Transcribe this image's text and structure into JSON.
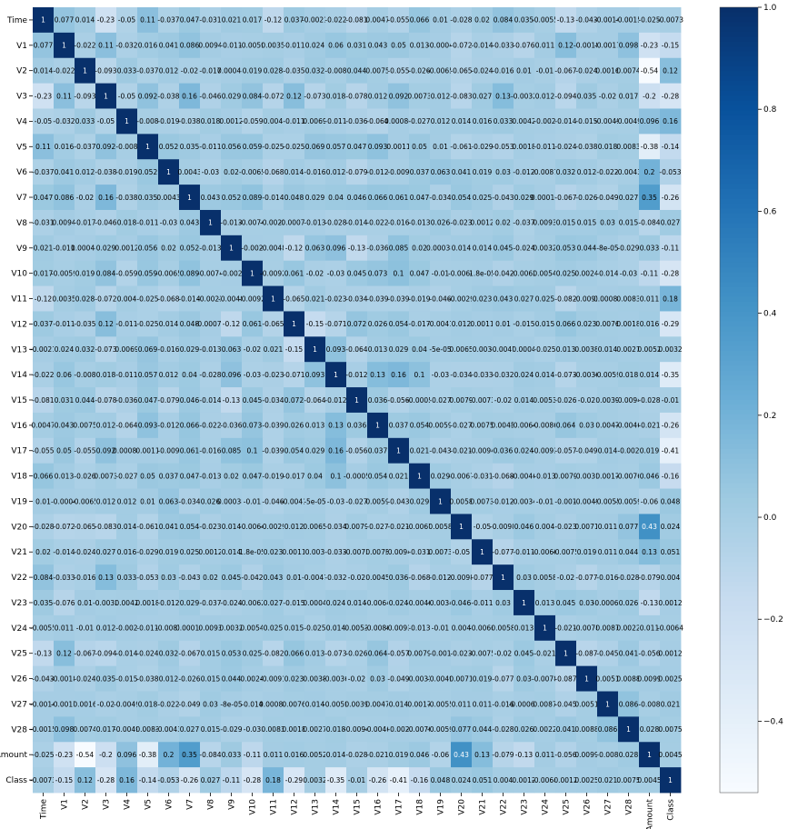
{
  "chart_data": {
    "type": "heatmap",
    "colormap": "Blues",
    "vmin": -0.54,
    "vmax": 1.0,
    "labels": [
      "Time",
      "V1",
      "V2",
      "V3",
      "V4",
      "V5",
      "V6",
      "V7",
      "V8",
      "V9",
      "V10",
      "V11",
      "V12",
      "V13",
      "V14",
      "V15",
      "V16",
      "V17",
      "V18",
      "V19",
      "V20",
      "V21",
      "V22",
      "V23",
      "V24",
      "V25",
      "V26",
      "V27",
      "V28",
      "Amount",
      "Class"
    ],
    "colorbar_ticks": [
      1.0,
      0.8,
      0.6,
      0.4,
      0.2,
      0.0,
      -0.2,
      -0.4
    ],
    "colorbar_tick_labels": [
      "1.0",
      "0.8",
      "0.6",
      "0.4",
      "0.2",
      "0.0",
      "−0.2",
      "−0.4"
    ],
    "matrix": [
      [
        "1",
        "0.077",
        "0.014",
        "-0.23",
        "-0.05",
        "0.11",
        "-0.037",
        "0.047",
        "-0.031",
        "0.021",
        "0.017",
        "-0.12",
        "0.037",
        "-0.0021",
        "-0.022",
        "-0.081",
        "0.0047",
        "-0.055",
        "0.066",
        "0.01",
        "-0.028",
        "0.02",
        "0.084",
        "0.035",
        "-0.0055",
        "-0.13",
        "-0.043",
        "-0.0014",
        "-0.0015",
        "-0.025",
        "-0.0073"
      ],
      [
        "0.077",
        "1",
        "-0.022",
        "0.11",
        "-0.032",
        "0.016",
        "0.041",
        "0.086",
        "0.0094",
        "-0.011",
        "-0.0059",
        "0.0035",
        "-0.011",
        "0.024",
        "0.06",
        "0.031",
        "0.043",
        "0.05",
        "0.013",
        "-0.0004",
        "-0.072",
        "-0.014",
        "-0.033",
        "-0.076",
        "0.011",
        "0.12",
        "-0.0018",
        "-0.0017",
        "0.098",
        "-0.23",
        "-0.15"
      ],
      [
        "0.014",
        "-0.022",
        "1",
        "-0.093",
        "0.033",
        "-0.037",
        "0.012",
        "-0.02",
        "-0.017",
        "0.00044",
        "0.019",
        "0.028",
        "-0.035",
        "0.032",
        "-0.008",
        "0.044",
        "0.0075",
        "-0.055",
        "-0.026",
        "-0.0065",
        "-0.065",
        "-0.024",
        "-0.016",
        "0.01",
        "-0.01",
        "-0.067",
        "-0.024",
        "0.0016",
        "0.0074",
        "-0.54",
        "0.12"
      ],
      [
        "-0.23",
        "0.11",
        "-0.093",
        "1",
        "-0.05",
        "0.092",
        "-0.038",
        "0.16",
        "-0.046",
        "0.029",
        "0.084",
        "-0.072",
        "0.12",
        "-0.073",
        "0.018",
        "-0.078",
        "0.012",
        "0.092",
        "0.0073",
        "0.012",
        "-0.083",
        "0.027",
        "0.13",
        "-0.0032",
        "0.012",
        "-0.094",
        "0.035",
        "-0.02",
        "0.017",
        "-0.2",
        "-0.28"
      ],
      [
        "-0.05",
        "-0.032",
        "0.033",
        "-0.05",
        "1",
        "-0.008",
        "-0.019",
        "-0.038",
        "0.018",
        "0.0012",
        "-0.059",
        "0.004",
        "-0.011",
        "0.0069",
        "-0.011",
        "-0.036",
        "-0.064",
        "0.00086",
        "-0.027",
        "0.012",
        "0.014",
        "0.016",
        "0.033",
        "0.0042",
        "-0.002",
        "-0.014",
        "-0.015",
        "-0.0049",
        "-0.0049",
        "0.096",
        "0.16"
      ],
      [
        "0.11",
        "0.016",
        "-0.037",
        "0.092",
        "-0.008",
        "1",
        "0.052",
        "0.035",
        "-0.011",
        "0.056",
        "0.059",
        "-0.025",
        "-0.025",
        "0.069",
        "0.057",
        "0.047",
        "0.093",
        "0.0011",
        "0.05",
        "0.01",
        "-0.061",
        "-0.029",
        "-0.053",
        "0.0018",
        "-0.011",
        "-0.024",
        "-0.038",
        "0.018",
        "0.0083",
        "-0.38",
        "-0.14"
      ],
      [
        "-0.037",
        "0.041",
        "0.012",
        "-0.038",
        "-0.019",
        "0.052",
        "1",
        "0.0043",
        "-0.03",
        "0.02",
        "-0.0065",
        "-0.068",
        "0.014",
        "-0.016",
        "0.012",
        "-0.079",
        "-0.012",
        "-0.009",
        "0.037",
        "0.063",
        "0.041",
        "0.019",
        "0.03",
        "-0.012",
        "-0.0087",
        "0.032",
        "0.012",
        "-0.022",
        "-0.0043",
        "0.2",
        "-0.053"
      ],
      [
        "0.047",
        "0.086",
        "-0.02",
        "0.16",
        "-0.038",
        "0.035",
        "0.0043",
        "1",
        "0.043",
        "0.052",
        "0.089",
        "-0.014",
        "0.048",
        "0.029",
        "0.04",
        "0.046",
        "0.066",
        "0.061",
        "0.047",
        "-0.034",
        "0.054",
        "0.025",
        "-0.043",
        "0.029",
        "0.00016",
        "-0.067",
        "-0.026",
        "-0.049",
        "0.027",
        "0.35",
        "-0.26"
      ],
      [
        "-0.031",
        "0.0094",
        "-0.017",
        "-0.046",
        "0.018",
        "-0.011",
        "-0.03",
        "0.043",
        "1",
        "-0.013",
        "-0.0074",
        "-0.0023",
        "-0.00072",
        "-0.013",
        "-0.028",
        "-0.014",
        "-0.022",
        "-0.016",
        "-0.013",
        "0.026",
        "-0.023",
        "0.0012",
        "0.02",
        "-0.037",
        "0.0093",
        "0.015",
        "0.015",
        "0.03",
        "0.015",
        "-0.084",
        "0.027"
      ],
      [
        "0.021",
        "-0.011",
        "0.00044",
        "0.029",
        "0.0012",
        "0.056",
        "0.02",
        "0.052",
        "-0.013",
        "1",
        "-0.002",
        "-0.0048",
        "-0.12",
        "0.063",
        "0.096",
        "-0.13",
        "-0.036",
        "0.085",
        "0.02",
        "0.00038",
        "0.014",
        "0.014",
        "0.045",
        "-0.024",
        "0.0032",
        "0.053",
        "0.044",
        "-8e-05",
        "-0.029",
        "0.033",
        "-0.11"
      ],
      [
        "0.017",
        "-0.0059",
        "0.019",
        "0.084",
        "-0.059",
        "0.059",
        "-0.0065",
        "0.089",
        "-0.0074",
        "-0.002",
        "1",
        "-0.0092",
        "0.061",
        "-0.02",
        "-0.03",
        "0.045",
        "0.073",
        "0.1",
        "0.047",
        "-0.01",
        "-0.0064",
        "1.8e-05",
        "-0.042",
        "-0.0062",
        "0.0054",
        "0.025",
        "0.0024",
        "-0.014",
        "-0.03",
        "-0.11",
        "-0.28"
      ],
      [
        "-0.12",
        "0.0035",
        "0.028",
        "-0.072",
        "0.004",
        "-0.025",
        "-0.068",
        "-0.014",
        "-0.0023",
        "-0.0048",
        "-0.0092",
        "1",
        "-0.065",
        "0.021",
        "-0.023",
        "-0.034",
        "-0.039",
        "-0.039",
        "-0.019",
        "-0.046",
        "-0.0029",
        "0.023",
        "0.043",
        "0.027",
        "0.025",
        "-0.082",
        "-0.0091",
        "0.00088",
        "0.0083",
        "0.011",
        "0.18"
      ],
      [
        "0.037",
        "-0.011",
        "-0.035",
        "0.12",
        "-0.011",
        "-0.025",
        "0.014",
        "0.048",
        "-0.00072",
        "-0.12",
        "0.061",
        "-0.065",
        "1",
        "-0.15",
        "-0.071",
        "0.072",
        "0.026",
        "0.054",
        "-0.017",
        "-0.0041",
        "0.012",
        "0.0011",
        "0.01",
        "-0.015",
        "0.015",
        "0.066",
        "0.023",
        "0.0076",
        "0.0018",
        "0.016",
        "-0.29"
      ],
      [
        "-0.0021",
        "0.024",
        "0.032",
        "-0.073",
        "0.0069",
        "0.069",
        "-0.016",
        "0.029",
        "-0.013",
        "0.063",
        "-0.02",
        "0.021",
        "-0.15",
        "1",
        "0.093",
        "-0.064",
        "0.013",
        "0.029",
        "0.04",
        "-5e-05",
        "0.0065",
        "0.003",
        "-0.0047",
        "0.0004",
        "-0.025",
        "0.013",
        "0.0038",
        "0.014",
        "0.0027",
        "0.0052",
        "0.0032"
      ],
      [
        "-0.022",
        "0.06",
        "-0.008",
        "0.018",
        "-0.011",
        "0.057",
        "0.012",
        "0.04",
        "-0.028",
        "0.096",
        "-0.03",
        "-0.023",
        "-0.071",
        "0.093",
        "1",
        "-0.012",
        "0.13",
        "0.16",
        "0.1",
        "-0.03",
        "-0.034",
        "-0.033",
        "-0.032",
        "0.024",
        "0.014",
        "-0.073",
        "-0.0036",
        "-0.0059",
        "0.018",
        "0.014",
        "-0.35"
      ],
      [
        "-0.081",
        "0.031",
        "0.044",
        "-0.078",
        "-0.036",
        "0.047",
        "-0.079",
        "0.046",
        "-0.014",
        "-0.13",
        "0.045",
        "-0.034",
        "0.072",
        "-0.064",
        "-0.012",
        "1",
        "0.036",
        "-0.056",
        "-0.0005",
        "-0.027",
        "0.0079",
        "-0.0073",
        "-0.02",
        "0.014",
        "0.0053",
        "-0.026",
        "-0.02",
        "0.0039",
        "-0.0094",
        "-0.028",
        "-0.01"
      ],
      [
        "0.0047",
        "0.043",
        "0.0075",
        "0.012",
        "-0.064",
        "0.093",
        "-0.012",
        "0.066",
        "-0.022",
        "-0.036",
        "0.073",
        "-0.039",
        "0.026",
        "0.013",
        "0.13",
        "0.036",
        "1",
        "0.037",
        "0.054",
        "0.0059",
        "-0.027",
        "0.0075",
        "0.0045",
        "-0.0064",
        "-0.0086",
        "0.064",
        "0.03",
        "0.0047",
        "-0.0046",
        "-0.021",
        "-0.26"
      ],
      [
        "-0.055",
        "0.05",
        "-0.055",
        "0.092",
        "0.00086",
        "0.0011",
        "-0.009",
        "0.061",
        "-0.016",
        "0.085",
        "0.1",
        "-0.039",
        "0.054",
        "0.029",
        "0.16",
        "-0.056",
        "0.037",
        "1",
        "0.021",
        "-0.043",
        "-0.021",
        "-0.0094",
        "0.036",
        "0.024",
        "-0.0093",
        "-0.057",
        "-0.049",
        "0.014",
        "-0.002",
        "0.019",
        "-0.41"
      ],
      [
        "0.066",
        "0.013",
        "-0.026",
        "0.0073",
        "-0.027",
        "0.05",
        "0.037",
        "0.047",
        "-0.013",
        "0.02",
        "0.047",
        "-0.019",
        "-0.017",
        "0.04",
        "0.1",
        "-0.0005",
        "0.054",
        "0.021",
        "1",
        "0.029",
        "-0.0067",
        "-0.031",
        "-0.068",
        "-0.0046",
        "-0.013",
        "0.0079",
        "-0.0031",
        "0.0017",
        "-0.0076",
        "0.046",
        "-0.16"
      ],
      [
        "0.01",
        "-0.0004",
        "-0.0065",
        "0.012",
        "0.012",
        "0.01",
        "0.063",
        "-0.034",
        "0.026",
        "0.00038",
        "-0.01",
        "-0.046",
        "-0.0041",
        "-5e-05",
        "-0.03",
        "-0.027",
        "0.0059",
        "-0.043",
        "0.029",
        "1",
        "0.0058",
        "0.0073",
        "-0.012",
        "-0.0034",
        "-0.01",
        "-0.001",
        "-0.0049",
        "-0.0055",
        "-0.0059",
        "-0.06",
        "0.048"
      ],
      [
        "-0.028",
        "-0.072",
        "-0.065",
        "-0.083",
        "0.014",
        "-0.061",
        "0.041",
        "0.054",
        "-0.023",
        "0.014",
        "-0.0064",
        "-0.0029",
        "0.012",
        "0.0065",
        "-0.034",
        "0.0079",
        "-0.027",
        "-0.021",
        "-0.0067",
        "0.0058",
        "1",
        "-0.05",
        "-0.0098",
        "0.046",
        "0.004",
        "-0.023",
        "0.0071",
        "0.011",
        "0.077",
        "0.43",
        "0.024"
      ],
      [
        "0.02",
        "-0.014",
        "-0.024",
        "0.027",
        "0.016",
        "-0.029",
        "0.019",
        "0.025",
        "0.0012",
        "0.014",
        "1.8e-05",
        "0.023",
        "0.0011",
        "0.003",
        "-0.033",
        "-0.0073",
        "0.0075",
        "-0.0094",
        "-0.031",
        "0.0073",
        "-0.05",
        "1",
        "-0.077",
        "-0.011",
        "-0.0066",
        "-0.0075",
        "0.019",
        "0.011",
        "0.044",
        "0.13",
        "0.051"
      ],
      [
        "0.084",
        "-0.033",
        "-0.016",
        "0.13",
        "0.033",
        "-0.053",
        "0.03",
        "-0.043",
        "0.02",
        "0.045",
        "-0.042",
        "0.043",
        "0.01",
        "-0.0047",
        "-0.032",
        "-0.02",
        "0.0045",
        "0.036",
        "-0.068",
        "-0.012",
        "-0.0098",
        "-0.077",
        "1",
        "0.03",
        "0.0058",
        "-0.02",
        "-0.077",
        "-0.016",
        "-0.028",
        "-0.079",
        "0.004"
      ],
      [
        "0.035",
        "-0.076",
        "0.01",
        "-0.0032",
        "0.0042",
        "0.0018",
        "-0.012",
        "0.029",
        "-0.037",
        "-0.024",
        "-0.0062",
        "0.027",
        "-0.015",
        "0.0004",
        "0.024",
        "0.014",
        "-0.0064",
        "0.024",
        "-0.0046",
        "-0.0034",
        "0.046",
        "-0.011",
        "0.03",
        "1",
        "0.013",
        "0.045",
        "0.03",
        "-0.00061",
        "0.026",
        "-0.13",
        "0.0012"
      ],
      [
        "-0.0055",
        "0.011",
        "-0.01",
        "0.012",
        "-0.002",
        "-0.011",
        "-0.0087",
        "0.00016",
        "0.0093",
        "0.0032",
        "0.0054",
        "0.025",
        "0.015",
        "-0.025",
        "0.014",
        "0.0053",
        "-0.0086",
        "-0.0093",
        "-0.013",
        "-0.01",
        "0.004",
        "-0.0066",
        "0.0058",
        "0.013",
        "1",
        "-0.021",
        "-0.0078",
        "0.0087",
        "0.0022",
        "0.011",
        "-0.0064"
      ],
      [
        "-0.13",
        "0.12",
        "-0.067",
        "-0.094",
        "-0.014",
        "-0.024",
        "0.032",
        "-0.067",
        "0.015",
        "0.053",
        "0.025",
        "-0.082",
        "0.066",
        "0.013",
        "-0.073",
        "-0.026",
        "0.064",
        "-0.057",
        "0.0079",
        "-0.001",
        "-0.023",
        "-0.0075",
        "-0.02",
        "0.045",
        "-0.021",
        "1",
        "-0.087",
        "-0.045",
        "0.041",
        "-0.056",
        "0.0012"
      ],
      [
        "-0.043",
        "-0.0018",
        "-0.024",
        "0.035",
        "-0.015",
        "-0.038",
        "0.012",
        "-0.026",
        "0.015",
        "0.044",
        "0.0024",
        "-0.0091",
        "0.023",
        "0.0038",
        "-0.0036",
        "-0.02",
        "0.03",
        "-0.049",
        "-0.0031",
        "-0.0049",
        "0.0071",
        "0.019",
        "-0.077",
        "0.03",
        "-0.0078",
        "-0.087",
        "1",
        "0.0051",
        "0.0088",
        "0.0099",
        "0.0025"
      ],
      [
        "-0.0014",
        "-0.0017",
        "0.0016",
        "-0.02",
        "-0.0049",
        "0.018",
        "-0.022",
        "-0.049",
        "0.03",
        "-8e-05",
        "-0.014",
        "0.00088",
        "0.0076",
        "0.014",
        "-0.0059",
        "0.0039",
        "0.0047",
        "0.014",
        "0.0017",
        "-0.0055",
        "0.011",
        "0.011",
        "-0.016",
        "-0.00061",
        "0.0087",
        "-0.045",
        "0.0051",
        "1",
        "0.086",
        "-0.008",
        "0.021"
      ],
      [
        "-0.0015",
        "0.098",
        "0.0074",
        "0.017",
        "-0.0049",
        "0.0083",
        "-0.0043",
        "0.027",
        "0.015",
        "-0.029",
        "-0.03",
        "0.0083",
        "0.0018",
        "0.0027",
        "0.018",
        "-0.0094",
        "-0.0046",
        "-0.002",
        "-0.0076",
        "-0.0059",
        "0.077",
        "0.044",
        "-0.028",
        "0.026",
        "0.0022",
        "0.041",
        "0.0088",
        "0.086",
        "1",
        "0.028",
        "0.0075"
      ],
      [
        "-0.025",
        "-0.23",
        "-0.54",
        "-0.2",
        "0.096",
        "-0.38",
        "0.2",
        "0.35",
        "-0.084",
        "0.033",
        "-0.11",
        "0.011",
        "0.016",
        "0.0052",
        "0.014",
        "-0.028",
        "-0.021",
        "0.019",
        "0.046",
        "-0.06",
        "0.43",
        "0.13",
        "-0.079",
        "-0.13",
        "0.011",
        "-0.056",
        "0.0099",
        "-0.008",
        "0.028",
        "1",
        "0.0045"
      ],
      [
        "-0.0073",
        "-0.15",
        "0.12",
        "-0.28",
        "0.16",
        "-0.14",
        "-0.053",
        "-0.26",
        "0.027",
        "-0.11",
        "-0.28",
        "0.18",
        "-0.29",
        "0.0032",
        "-0.35",
        "-0.01",
        "-0.26",
        "-0.41",
        "-0.16",
        "0.048",
        "0.024",
        "0.051",
        "0.004",
        "0.0012",
        "-0.0064",
        "0.0012",
        "0.0025",
        "0.021",
        "0.0075",
        "0.0045",
        "1"
      ]
    ]
  }
}
